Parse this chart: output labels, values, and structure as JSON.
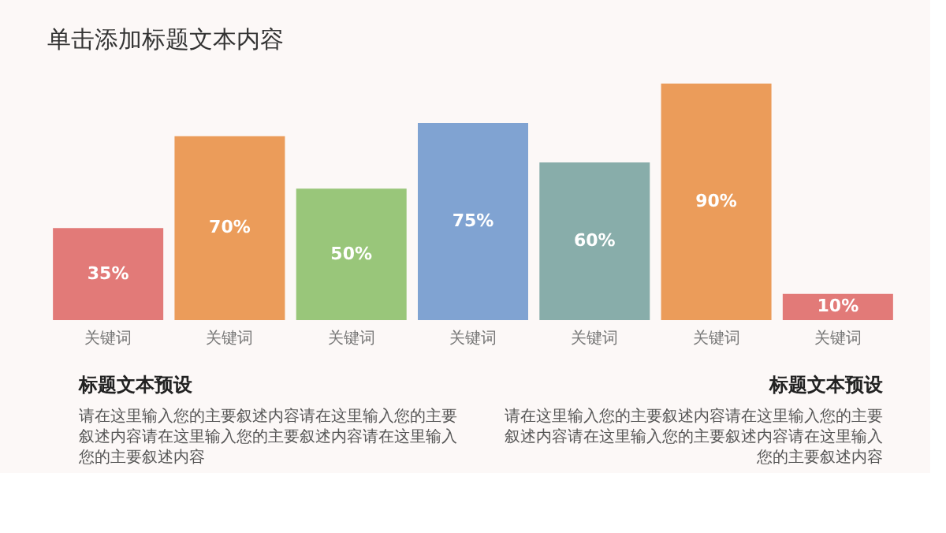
{
  "chart_data": {
    "type": "bar",
    "title": "单击添加标题文本内容",
    "categories": [
      "关键词",
      "关键词",
      "关键词",
      "关键词",
      "关键词",
      "关键词",
      "关键词"
    ],
    "values": [
      35,
      70,
      50,
      75,
      60,
      90,
      10
    ],
    "colors": [
      "#e27a78",
      "#eb9c5a",
      "#99c67a",
      "#80a3d2",
      "#88adaa",
      "#eb9c5a",
      "#e27a78"
    ],
    "value_labels": [
      "35%",
      "70%",
      "50%",
      "75%",
      "60%",
      "90%",
      "10%"
    ],
    "annotations": [
      "标题文本预设",
      "请在这里输入您的主要叙述内容请在这里输入您的主要叙述内容请在这里输入您的主要叙述内容请在这里输入您的主要叙述内容",
      "标题文本预设",
      "请在这里输入您的主要叙述内容请在这里输入您的主要叙述内容请在这里输入您的主要叙述内容请在这里输入您的主要叙述内容"
    ]
  }
}
